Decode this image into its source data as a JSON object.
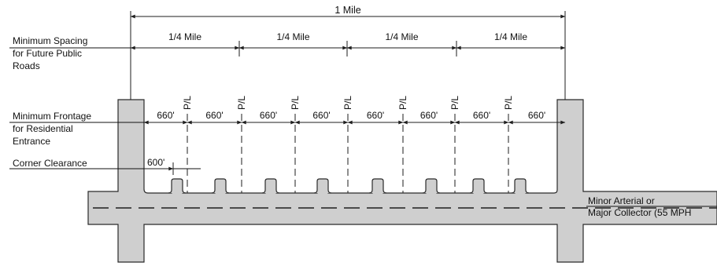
{
  "labels": {
    "total_span": "1 Mile",
    "quarter_segment": "1/4 Mile",
    "frontage_segment": "660'",
    "property_line": "P/L",
    "corner_dimension": "600'",
    "road_label_line1": "Minor Arterial or",
    "road_label_line2": "Major Collector (55 MPH"
  },
  "rows": {
    "spacing": [
      "Minimum Spacing",
      "for Future Public",
      "Roads"
    ],
    "frontage": [
      "Minimum Frontage",
      "for Residential",
      "Entrance"
    ],
    "corner": "Corner Clearance"
  },
  "colors": {
    "road_fill": "#cfcfcf",
    "line": "#1e1e1e"
  }
}
